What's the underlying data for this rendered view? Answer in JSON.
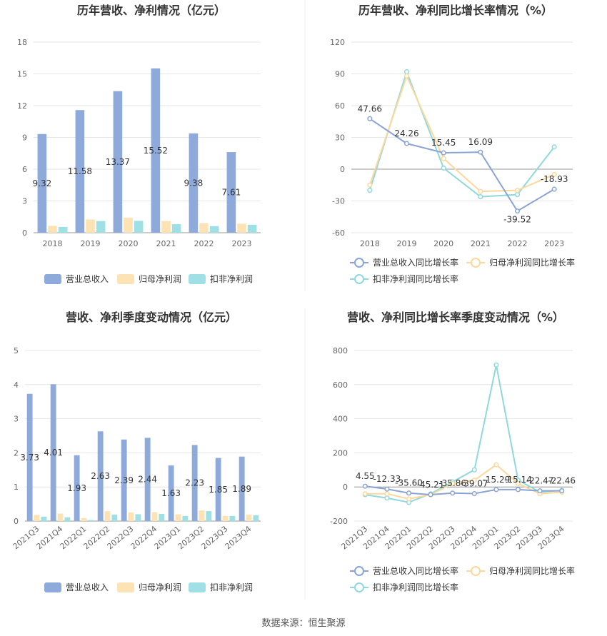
{
  "colors": {
    "revenue": "#8eaadb",
    "net_profit": "#fde3b4",
    "deducted_profit": "#9ee0e3",
    "revenue_line": "#8aa4d6",
    "net_profit_line": "#fcd89a",
    "deducted_line": "#8fd9dc",
    "grid": "#e6e6e6",
    "axis_text": "#666666",
    "title": "#333333"
  },
  "source": "数据来源：恒生聚源",
  "chart_data": [
    {
      "id": "annual-amount",
      "type": "bar",
      "title": "历年营收、净利情况（亿元）",
      "categories": [
        "2018",
        "2019",
        "2020",
        "2021",
        "2022",
        "2023"
      ],
      "ylim": [
        0,
        18
      ],
      "yticks": [
        "0",
        "3",
        "6",
        "9",
        "12",
        "15",
        "18"
      ],
      "series": [
        {
          "name": "营业总收入",
          "values": [
            9.32,
            11.58,
            13.37,
            15.52,
            9.38,
            7.61
          ],
          "labels": [
            "9.32",
            "11.58",
            "13.37",
            "15.52",
            "9.38",
            "7.61"
          ]
        },
        {
          "name": "归母净利润",
          "values": [
            0.65,
            1.25,
            1.42,
            1.1,
            0.9,
            0.85
          ]
        },
        {
          "name": "扣非净利润",
          "values": [
            0.55,
            1.1,
            1.12,
            0.8,
            0.62,
            0.75
          ]
        }
      ],
      "legend": "bottom"
    },
    {
      "id": "annual-growth",
      "type": "line",
      "title": "历年营收、净利同比增长率情况（%）",
      "categories": [
        "2018",
        "2019",
        "2020",
        "2021",
        "2022",
        "2023"
      ],
      "ylim": [
        -60,
        120
      ],
      "yticks": [
        "-60",
        "-30",
        "0",
        "30",
        "60",
        "90",
        "120"
      ],
      "series": [
        {
          "name": "营业总收入同比增长率",
          "values": [
            47.66,
            24.26,
            15.45,
            16.09,
            -39.52,
            -18.93
          ],
          "labels": [
            "47.66",
            "24.26",
            "15.45",
            "16.09",
            "-39.52",
            "-18.93"
          ]
        },
        {
          "name": "归母净利润同比增长率",
          "values": [
            -15,
            88,
            10,
            -21,
            -20,
            -5
          ]
        },
        {
          "name": "扣非净利润同比增长率",
          "values": [
            -20,
            92,
            1,
            -26,
            -24,
            21
          ]
        }
      ],
      "legend": "bottom"
    },
    {
      "id": "quarterly-amount",
      "type": "bar",
      "title": "营收、净利季度变动情况（亿元）",
      "categories": [
        "2021Q3",
        "2021Q4",
        "2022Q1",
        "2022Q2",
        "2022Q3",
        "2022Q4",
        "2023Q1",
        "2023Q2",
        "2023Q3",
        "2023Q4"
      ],
      "ylim": [
        0,
        5
      ],
      "yticks": [
        "0",
        "1",
        "2",
        "3",
        "4",
        "5"
      ],
      "series": [
        {
          "name": "营业总收入",
          "values": [
            3.73,
            4.01,
            1.93,
            2.63,
            2.39,
            2.44,
            1.63,
            2.23,
            1.85,
            1.89
          ],
          "labels": [
            "3.73",
            "4.01",
            "1.93",
            "2.63",
            "2.39",
            "2.44",
            "1.63",
            "2.23",
            "1.85",
            "1.89"
          ]
        },
        {
          "name": "归母净利润",
          "values": [
            0.18,
            0.22,
            0.09,
            0.29,
            0.25,
            0.26,
            0.2,
            0.31,
            0.15,
            0.19
          ]
        },
        {
          "name": "扣非净利润",
          "values": [
            0.13,
            0.11,
            0.03,
            0.19,
            0.2,
            0.21,
            0.15,
            0.29,
            0.15,
            0.17
          ]
        }
      ],
      "legend": "bottom"
    },
    {
      "id": "quarterly-growth",
      "type": "line",
      "title": "营收、净利同比增长率季度变动情况（%）",
      "categories": [
        "2021Q3",
        "2021Q4",
        "2022Q1",
        "2022Q2",
        "2022Q3",
        "2022Q4",
        "2023Q1",
        "2023Q2",
        "2023Q3",
        "2023Q4"
      ],
      "ylim": [
        -200,
        800
      ],
      "yticks": [
        "-200",
        "0",
        "200",
        "400",
        "600",
        "800"
      ],
      "series": [
        {
          "name": "营业总收入同比增长率",
          "values": [
            4.55,
            -12.33,
            -35.6,
            -45.21,
            -35.86,
            -39.07,
            -15.29,
            -15.14,
            -22.47,
            -22.46
          ],
          "labels": [
            "4.55",
            "-12.33",
            "-35.60",
            "-45.21",
            "-35.86",
            "-39.07",
            "-15.29",
            "-15.14",
            "-22.47",
            "-22.46"
          ]
        },
        {
          "name": "归母净利润同比增长率",
          "values": [
            -40,
            -40,
            -70,
            -45,
            20,
            40,
            130,
            20,
            -40,
            -30
          ]
        },
        {
          "name": "扣非净利润同比增长率",
          "values": [
            -45,
            -65,
            -90,
            -40,
            30,
            100,
            715,
            40,
            -30,
            -20
          ]
        }
      ],
      "legend": "bottom"
    }
  ]
}
